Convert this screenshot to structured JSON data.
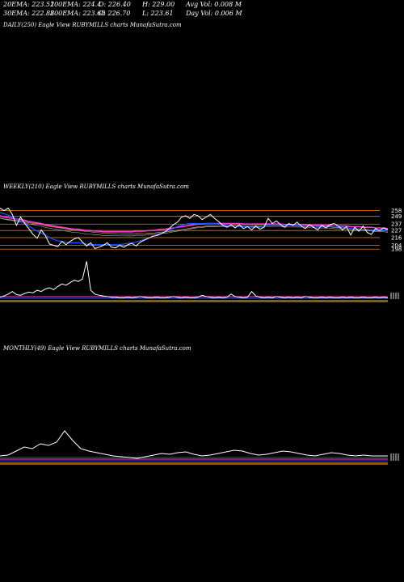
{
  "header": {
    "row1": [
      {
        "label": "20EMA: 223.52"
      },
      {
        "label": "100EMA: 224.4"
      },
      {
        "label": "O: 226.40"
      },
      {
        "label": "H: 229.00"
      },
      {
        "label": "Avg Vol: 0.008  M"
      }
    ],
    "row2": [
      {
        "label": "30EMA: 222.88"
      },
      {
        "label": "200EMA: 223.68"
      },
      {
        "label": "C: 226.70"
      },
      {
        "label": "L: 223.61"
      },
      {
        "label": "Day Vol: 0.006  M"
      }
    ]
  },
  "panels": {
    "daily": {
      "title": "DAILY(250) Eagle   View  RUBYMILLS charts MunafaSutra.com"
    },
    "weekly": {
      "title": "WEEKLY(210) Eagle   View  RUBYMILLS charts MunafaSutra.com"
    },
    "monthly": {
      "title": "MONTHLY(49) Eagle   View  RUBYMILLS charts MunafaSutra.com"
    }
  },
  "colors": {
    "background": "#000000",
    "price": "#ffffff",
    "ema_short": "#1e4fff",
    "ema_long": "#ff3ad6",
    "ema_mid": "#9a9a9a",
    "ema_tan": "#c8a060",
    "level_line": "#d87a1a",
    "volume_base": "#8a5a12"
  },
  "chart_data": [
    {
      "type": "line",
      "name": "weekly",
      "y_ticks": [
        258,
        249,
        237,
        227,
        216,
        204,
        198
      ],
      "price": [
        262,
        258,
        262,
        252,
        235,
        248,
        238,
        230,
        221,
        215,
        228,
        219,
        206,
        204,
        202,
        210,
        205,
        210,
        214,
        216,
        209,
        203,
        208,
        199,
        201,
        204,
        208,
        201,
        200,
        204,
        201,
        205,
        207,
        203,
        209,
        212,
        215,
        218,
        219,
        222,
        225,
        230,
        236,
        240,
        248,
        250,
        246,
        252,
        250,
        244,
        248,
        252,
        246,
        241,
        235,
        232,
        236,
        231,
        236,
        230,
        233,
        228,
        234,
        229,
        232,
        246,
        238,
        242,
        236,
        232,
        238,
        235,
        240,
        234,
        230,
        236,
        232,
        228,
        235,
        231,
        236,
        238,
        234,
        228,
        233,
        220,
        232,
        226,
        234,
        224,
        221,
        230,
        227,
        231,
        228
      ],
      "ema_short": [
        255,
        253,
        251,
        248,
        245,
        242,
        238,
        234,
        230,
        226,
        223,
        220,
        216,
        213,
        211,
        210,
        209,
        208,
        208,
        208,
        207,
        206,
        205,
        205,
        205,
        205,
        205,
        205,
        205,
        205,
        206,
        207,
        208,
        209,
        211,
        213,
        215,
        218,
        220,
        222,
        225,
        228,
        230,
        233,
        235,
        237,
        238,
        238,
        238,
        238,
        238,
        238,
        238,
        237,
        236,
        235,
        234,
        234,
        233,
        233,
        233,
        232,
        232,
        232,
        233,
        235,
        236,
        236,
        236,
        235,
        235,
        235,
        236,
        235,
        234,
        234,
        234,
        233,
        233,
        233,
        234,
        234,
        233,
        232,
        231,
        230,
        230,
        229,
        229,
        229,
        228,
        228,
        228,
        228,
        228
      ],
      "ema_long": [
        250,
        248,
        247,
        246,
        245,
        244,
        243,
        241,
        240,
        239,
        238,
        236,
        235,
        234,
        233,
        232,
        231,
        230,
        229,
        229,
        228,
        227,
        227,
        226,
        226,
        225,
        225,
        225,
        225,
        225,
        225,
        225,
        225,
        226,
        226,
        226,
        227,
        227,
        228,
        229,
        229,
        230,
        231,
        232,
        233,
        234,
        235,
        236,
        237,
        237,
        238,
        238,
        238,
        238,
        238,
        238,
        238,
        238,
        238,
        237,
        237,
        237,
        237,
        237,
        237,
        237,
        237,
        237,
        237,
        236,
        236,
        236,
        236,
        236,
        236,
        235,
        235,
        235,
        235,
        235,
        235,
        234,
        234,
        234,
        234,
        233,
        233,
        233,
        232,
        232,
        232,
        231,
        231,
        231,
        230
      ],
      "volume": [
        3,
        5,
        8,
        12,
        7,
        6,
        9,
        11,
        10,
        14,
        12,
        16,
        18,
        15,
        20,
        24,
        22,
        26,
        30,
        28,
        32,
        60,
        14,
        8,
        6,
        5,
        4,
        3,
        3,
        2,
        2,
        3,
        2,
        3,
        4,
        3,
        2,
        2,
        3,
        2,
        2,
        3,
        4,
        3,
        2,
        3,
        2,
        2,
        3,
        6,
        4,
        3,
        2,
        3,
        2,
        3,
        8,
        4,
        3,
        2,
        3,
        12,
        5,
        3,
        2,
        3,
        2,
        4,
        3,
        2,
        3,
        2,
        3,
        2,
        4,
        3,
        2,
        2,
        3,
        2,
        3,
        2,
        2,
        3,
        2,
        3,
        2,
        2,
        3,
        2,
        2,
        3,
        2,
        3,
        2
      ]
    },
    {
      "type": "line",
      "name": "monthly",
      "volume": [
        3,
        4,
        9,
        14,
        12,
        18,
        16,
        20,
        34,
        22,
        12,
        9,
        7,
        5,
        3,
        2,
        1,
        0,
        2,
        4,
        6,
        5,
        7,
        8,
        5,
        3,
        4,
        6,
        8,
        10,
        9,
        6,
        4,
        5,
        7,
        9,
        8,
        6,
        4,
        3,
        5,
        7,
        6,
        4,
        3,
        4,
        3,
        3,
        3
      ]
    }
  ]
}
